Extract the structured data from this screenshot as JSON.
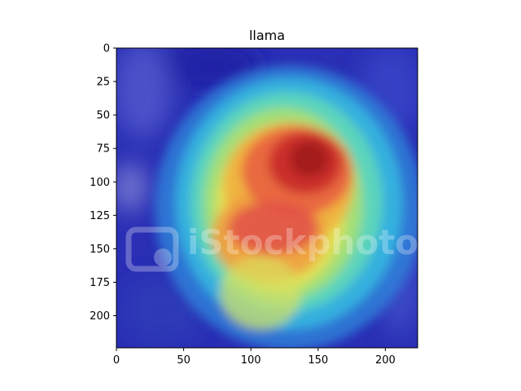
{
  "chart_data": {
    "type": "heatmap",
    "title": "llama",
    "xlabel": "",
    "ylabel": "",
    "xlim": [
      0,
      224
    ],
    "ylim": [
      224,
      0
    ],
    "xticks": [
      0,
      50,
      100,
      150,
      200
    ],
    "yticks": [
      0,
      25,
      50,
      75,
      100,
      125,
      150,
      175,
      200
    ],
    "grid": false,
    "legend": "none",
    "colormap": "jet",
    "overlay_alpha": 0.5,
    "hotspots": [
      {
        "x": 140,
        "y": 85,
        "intensity": 1.0
      },
      {
        "x": 120,
        "y": 135,
        "intensity": 0.9
      },
      {
        "x": 110,
        "y": 175,
        "intensity": 0.55
      }
    ],
    "watermark": "iStockphoto"
  }
}
